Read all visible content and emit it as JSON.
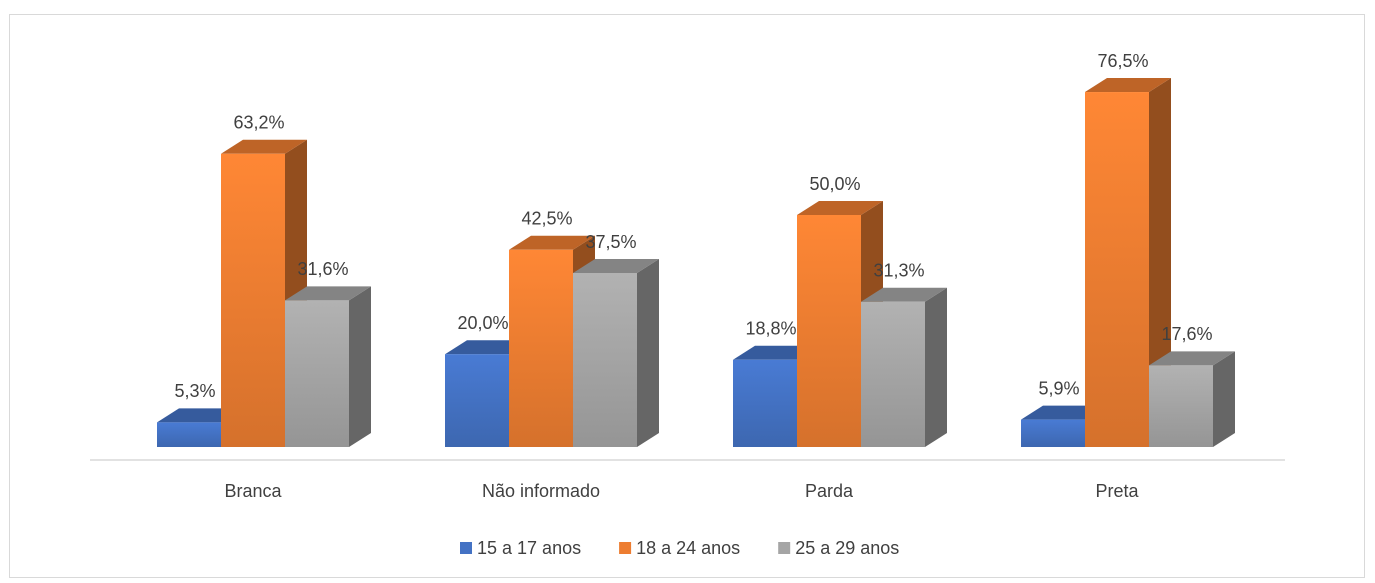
{
  "chart_data": {
    "type": "bar3d",
    "categories": [
      "Branca",
      "Não informado",
      "Parda",
      "Preta"
    ],
    "series": [
      {
        "name": "15 a 17 anos",
        "color": "#4472c4",
        "values": [
          5.3,
          20.0,
          18.8,
          5.9
        ],
        "value_labels": [
          "5,3%",
          "20,0%",
          "18,8%",
          "5,9%"
        ]
      },
      {
        "name": "18 a 24 anos",
        "color": "#ed7d31",
        "values": [
          63.2,
          42.5,
          50.0,
          76.5
        ],
        "value_labels": [
          "63,2%",
          "42,5%",
          "50,0%",
          "76,5%"
        ]
      },
      {
        "name": "25 a 29 anos",
        "color": "#a5a5a5",
        "values": [
          31.6,
          37.5,
          31.3,
          17.6
        ],
        "value_labels": [
          "31,6%",
          "37,5%",
          "31,3%",
          "17,6%"
        ]
      }
    ],
    "legend": "bottom"
  }
}
